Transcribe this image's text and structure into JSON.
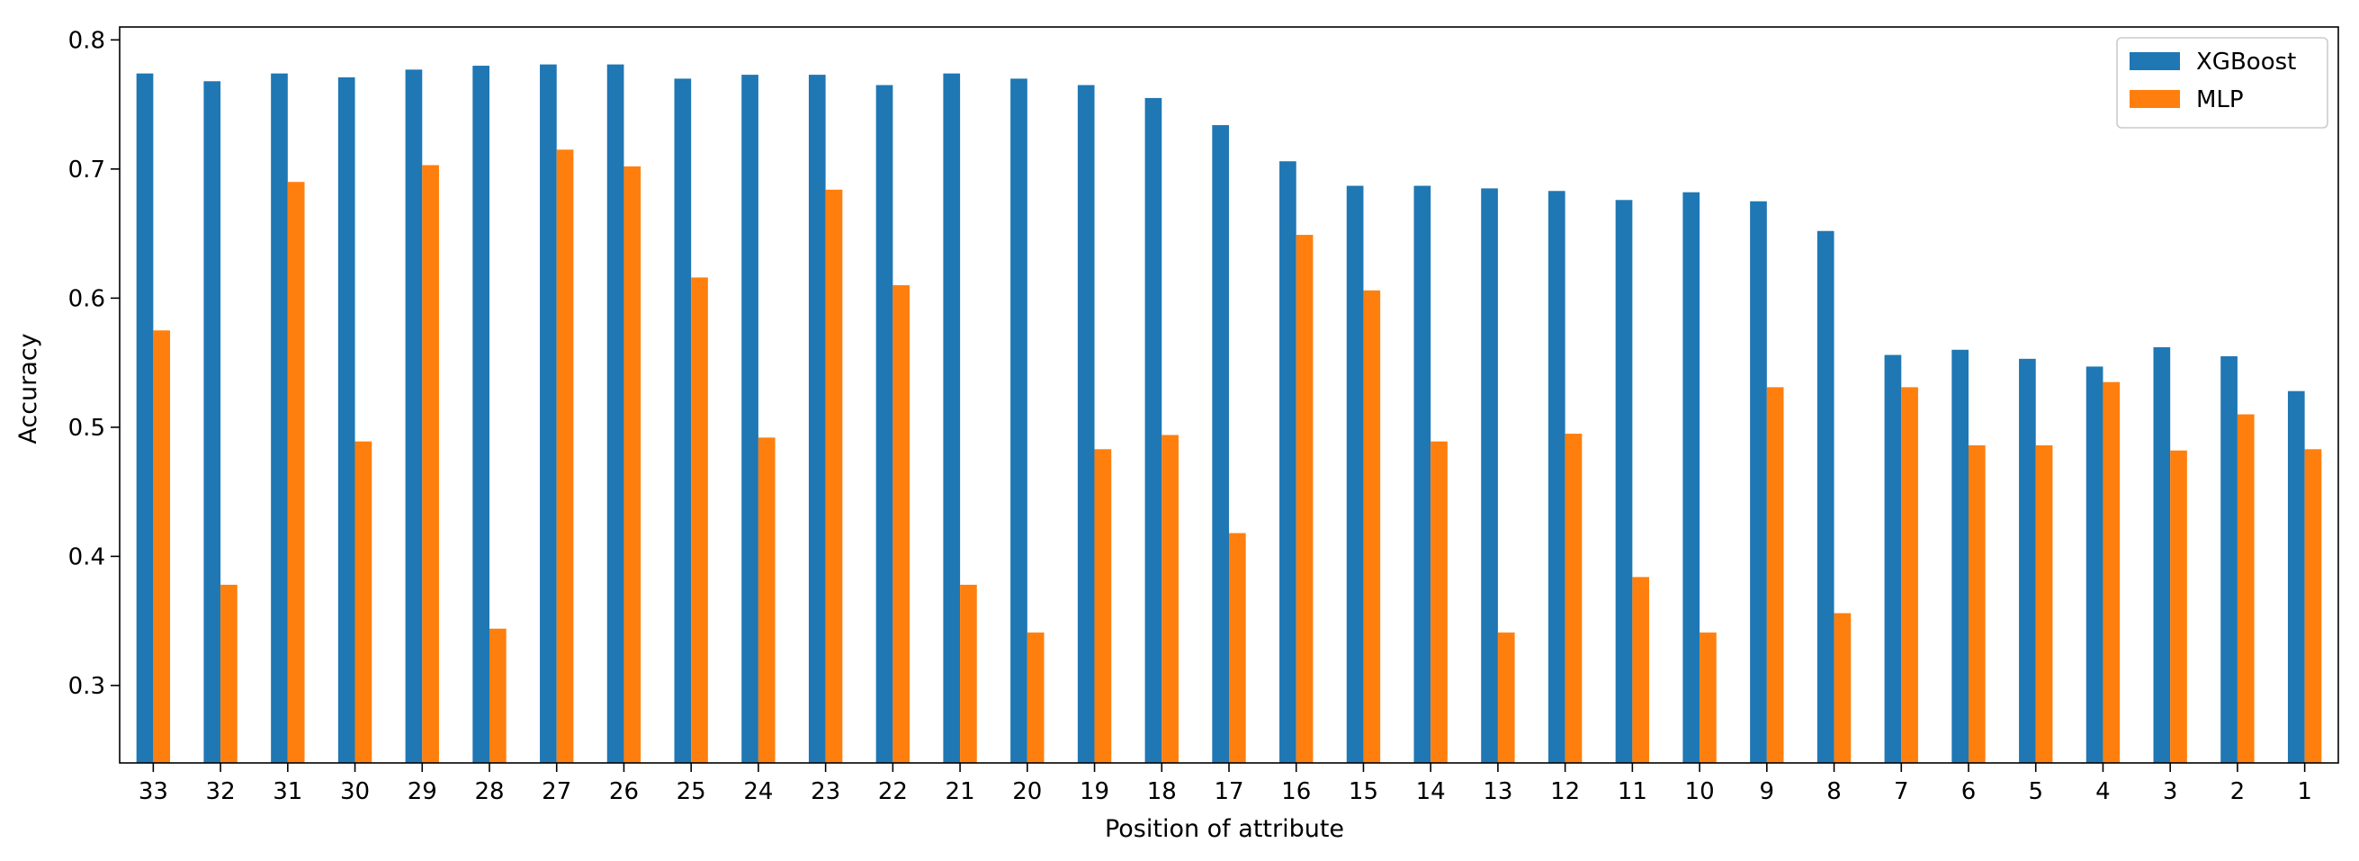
{
  "chart_data": {
    "type": "bar",
    "xlabel": "Position of attribute",
    "ylabel": "Accuracy",
    "ylim": [
      0.24,
      0.81
    ],
    "yticks": [
      "0.3",
      "0.4",
      "0.5",
      "0.6",
      "0.7",
      "0.8"
    ],
    "ytick_values": [
      0.3,
      0.4,
      0.5,
      0.6,
      0.7,
      0.8
    ],
    "categories": [
      "33",
      "32",
      "31",
      "30",
      "29",
      "28",
      "27",
      "26",
      "25",
      "24",
      "23",
      "22",
      "21",
      "20",
      "19",
      "18",
      "17",
      "16",
      "15",
      "14",
      "13",
      "12",
      "11",
      "10",
      "9",
      "8",
      "7",
      "6",
      "5",
      "4",
      "3",
      "2",
      "1"
    ],
    "series": [
      {
        "name": "XGBoost",
        "color": "#1f77b4",
        "values": [
          0.774,
          0.768,
          0.774,
          0.771,
          0.777,
          0.78,
          0.781,
          0.781,
          0.77,
          0.773,
          0.773,
          0.765,
          0.774,
          0.77,
          0.765,
          0.755,
          0.734,
          0.706,
          0.687,
          0.687,
          0.685,
          0.683,
          0.676,
          0.682,
          0.675,
          0.652,
          0.556,
          0.56,
          0.553,
          0.547,
          0.562,
          0.555,
          0.528
        ]
      },
      {
        "name": "MLP",
        "color": "#ff7f0e",
        "values": [
          0.575,
          0.378,
          0.69,
          0.489,
          0.703,
          0.344,
          0.715,
          0.702,
          0.616,
          0.492,
          0.684,
          0.61,
          0.378,
          0.341,
          0.483,
          0.494,
          0.418,
          0.649,
          0.606,
          0.489,
          0.341,
          0.495,
          0.384,
          0.341,
          0.531,
          0.356,
          0.531,
          0.486,
          0.486,
          0.535,
          0.482,
          0.51,
          0.483
        ]
      }
    ],
    "legend_position": "top-right",
    "grid": false
  }
}
